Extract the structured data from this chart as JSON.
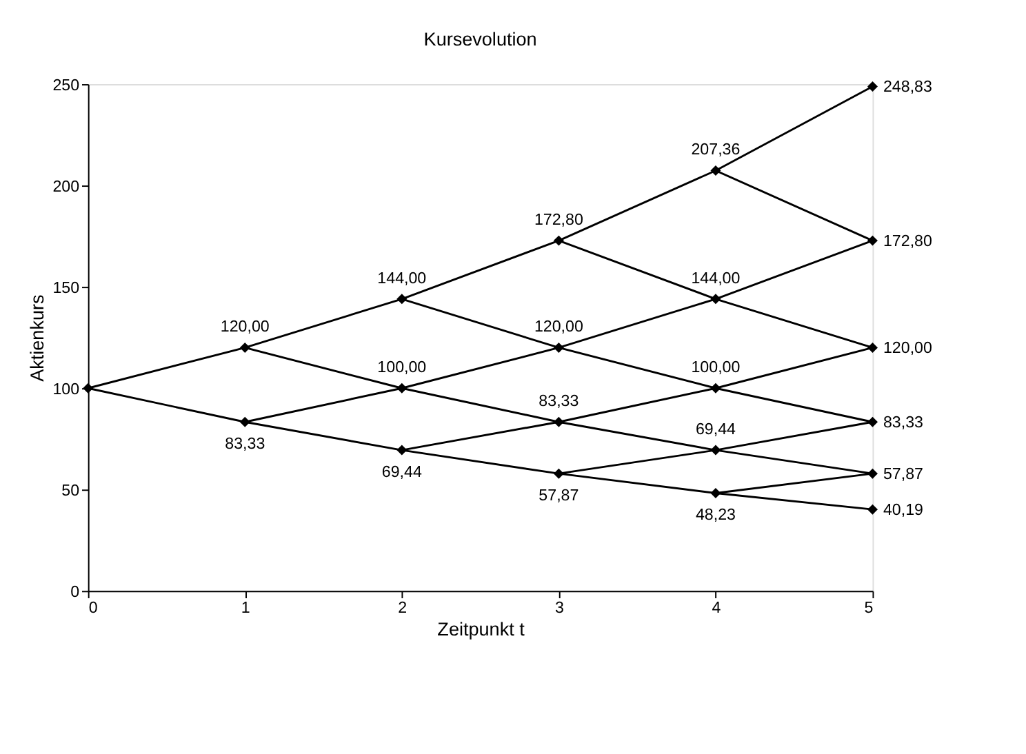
{
  "chart_data": {
    "type": "line",
    "title": "Kursevolution",
    "xlabel": "Zeitpunkt t",
    "ylabel": "Aktienkurs",
    "xlim": [
      0,
      5
    ],
    "xticks": [
      0,
      1,
      2,
      3,
      4,
      5
    ],
    "ylim": [
      0,
      250
    ],
    "yticks": [
      0,
      50,
      100,
      150,
      200,
      250
    ],
    "grid": false,
    "marker": "none",
    "line_style": "solid",
    "series": [
      {
        "color": "#000000",
        "x": [
          0,
          1,
          2,
          3,
          4,
          5
        ],
        "values": [
          100,
          120,
          144,
          172.8,
          207.36,
          248.83
        ]
      },
      {
        "color": "#000000",
        "x": [
          1,
          2,
          3,
          4,
          5
        ],
        "values": [
          83.33,
          100,
          120,
          144,
          172.8
        ]
      },
      {
        "color": "#000000",
        "x": [
          2,
          3,
          4,
          5
        ],
        "values": [
          69.44,
          83.33,
          100,
          120
        ]
      },
      {
        "color": "#000000",
        "x": [
          3,
          4,
          5
        ],
        "values": [
          57.87,
          69.44,
          83.33
        ]
      },
      {
        "color": "#000000",
        "x": [
          4,
          5
        ],
        "values": [
          48.23,
          57.87
        ]
      },
      {
        "color": "#000000",
        "x": [
          0,
          1,
          2,
          3,
          4,
          5
        ],
        "values": [
          100,
          83.33,
          69.44,
          57.87,
          48.23,
          40.19
        ]
      },
      {
        "color": "#000000",
        "x": [
          1,
          2,
          3,
          4,
          5
        ],
        "values": [
          120,
          100,
          83.33,
          69.44,
          57.87
        ]
      },
      {
        "color": "#000000",
        "x": [
          2,
          3,
          4,
          5
        ],
        "values": [
          144,
          120,
          100,
          83.33
        ]
      },
      {
        "color": "#000000",
        "x": [
          3,
          4,
          5
        ],
        "values": [
          172.8,
          144,
          120
        ]
      },
      {
        "color": "#000000",
        "x": [
          4,
          5
        ],
        "values": [
          207.36,
          172.8
        ]
      },
      {
        "type": "scatter",
        "color": "#000000",
        "marker": "diamond",
        "x": [
          0,
          1,
          1,
          2,
          2,
          2,
          3,
          3,
          3,
          3,
          4,
          4,
          4,
          4,
          4,
          5,
          5,
          5,
          5,
          5,
          5
        ],
        "values": [
          100,
          120,
          83.33,
          144,
          100,
          69.44,
          172.8,
          120,
          83.33,
          57.87,
          207.36,
          144,
          100,
          69.44,
          48.23,
          248.83,
          172.8,
          120,
          83.33,
          57.87,
          40.19
        ],
        "value_labels": [
          null,
          "120,00",
          "83,33",
          "144,00",
          "100,00",
          "69,44",
          "172,80",
          "120,00",
          "83,33",
          "57,87",
          "207,36",
          "144,00",
          "100,00",
          "69,44",
          "48,23",
          "248,83",
          "172,80",
          "120,00",
          "83,33",
          "57,87",
          "40,19"
        ]
      }
    ]
  }
}
